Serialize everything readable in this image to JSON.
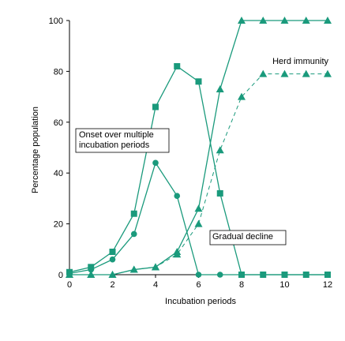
{
  "chart_data": {
    "type": "line",
    "title": "",
    "xlabel": "Incubation periods",
    "ylabel": "Percentage population",
    "xlim": [
      0,
      12
    ],
    "ylim": [
      0,
      100
    ],
    "xticks": [
      0,
      2,
      4,
      6,
      8,
      10,
      12
    ],
    "yticks": [
      0,
      20,
      40,
      60,
      80,
      100
    ],
    "grid": false,
    "series": [
      {
        "marker": "square",
        "dashed": false,
        "x": [
          0,
          1,
          2,
          3,
          4,
          5,
          6,
          7,
          8,
          9,
          10,
          11,
          12
        ],
        "y": [
          1,
          3,
          9,
          24,
          66,
          82,
          76,
          32,
          0,
          0,
          0,
          0,
          0
        ]
      },
      {
        "marker": "circle",
        "dashed": false,
        "x": [
          0,
          1,
          2,
          3,
          4,
          5,
          6,
          7,
          8,
          9,
          10,
          11,
          12
        ],
        "y": [
          0.5,
          2,
          6,
          16,
          44,
          31,
          0,
          0,
          0,
          0,
          0,
          0,
          0
        ]
      },
      {
        "marker": "triangle",
        "dashed": false,
        "x": [
          0,
          1,
          2,
          3,
          4,
          5,
          6,
          7,
          8,
          9,
          10,
          11,
          12
        ],
        "y": [
          0,
          0,
          0,
          2,
          3,
          9,
          26,
          73,
          100,
          100,
          100,
          100,
          100
        ]
      },
      {
        "marker": "triangle",
        "dashed": true,
        "x": [
          0,
          1,
          2,
          3,
          4,
          5,
          6,
          7,
          8,
          9,
          10,
          11,
          12
        ],
        "y": [
          0,
          0,
          0,
          2,
          3,
          8,
          20,
          49,
          70,
          79,
          79,
          79,
          79
        ]
      }
    ],
    "annotations": [
      {
        "text_lines": [
          "Onset over multiple",
          "incubation periods"
        ],
        "boxed": true
      },
      {
        "text_lines": [
          "Gradual decline"
        ],
        "boxed": true
      },
      {
        "text_lines": [
          "Herd immunity"
        ],
        "boxed": false
      }
    ],
    "colors": {
      "series": "#1a9a7c",
      "axis": "#000000"
    }
  }
}
